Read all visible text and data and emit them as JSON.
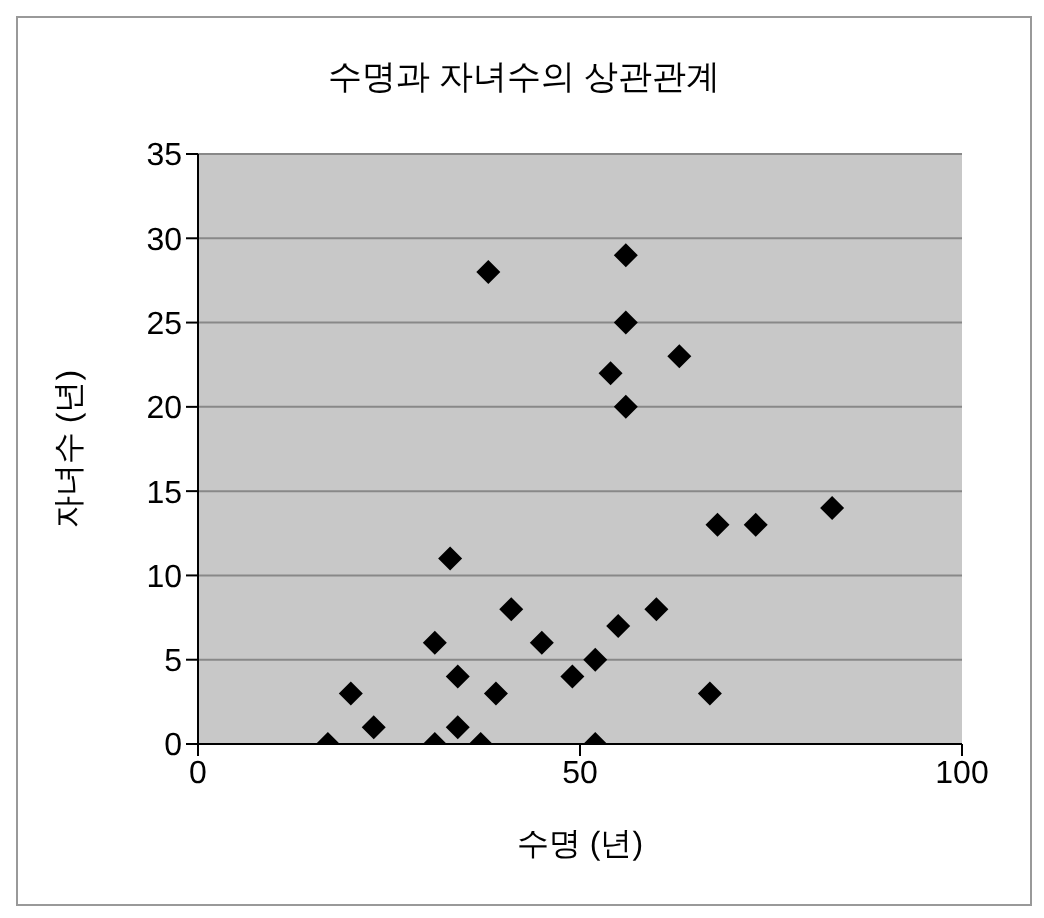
{
  "chart_data": {
    "type": "scatter",
    "title": "수명과 자녀수의 상관관계",
    "xlabel": "수명 (년)",
    "ylabel": "자녀수 (년)",
    "series": [
      {
        "color": "#000000",
        "x": [
          17,
          20,
          23,
          31,
          31,
          33,
          34,
          34,
          37,
          38,
          39,
          41,
          45,
          49,
          52,
          52,
          54,
          56,
          56,
          56,
          55,
          60,
          63,
          67,
          68,
          73,
          83
        ],
        "values": [
          0,
          3,
          1,
          0,
          6,
          11,
          4,
          1,
          0,
          28,
          3,
          8,
          6,
          4,
          0,
          5,
          22,
          29,
          25,
          20,
          7,
          8,
          23,
          3,
          13,
          13,
          14
        ]
      }
    ],
    "xlim": [
      0,
      100
    ],
    "xticks": [
      0,
      50,
      100
    ],
    "ylim": [
      0,
      35
    ],
    "yticks": [
      0,
      5,
      10,
      15,
      20,
      25,
      30,
      35
    ],
    "grid": "y",
    "marker": "diamond"
  }
}
